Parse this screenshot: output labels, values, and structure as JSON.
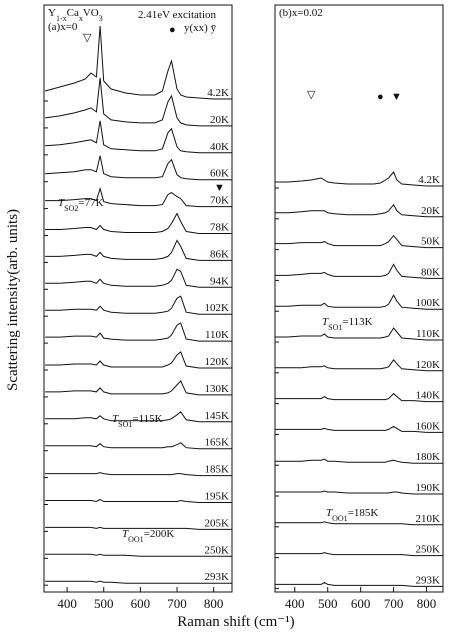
{
  "xlabel": "Raman shift (cm⁻¹)",
  "ylabel": "Scattering intensity(arb. units)",
  "chart_data": [
    {
      "type": "line",
      "x": [
        340,
        380,
        420,
        450,
        465,
        480,
        490,
        500,
        520,
        560,
        600,
        640,
        660,
        675,
        685,
        700,
        710,
        725,
        760,
        800,
        850
      ],
      "xlim": [
        337,
        850
      ],
      "xticks": [
        400,
        500,
        600,
        700,
        800
      ],
      "annotations": [
        {
          "parts": [
            "Y",
            "1-x",
            "Ca",
            "x",
            "VO",
            "3"
          ]
        },
        {
          "parts": [
            "(a)x=0"
          ]
        },
        {
          "parts": [
            "2.41eV excitation"
          ]
        },
        {
          "parts": [
            "y(xx) ȳ"
          ]
        },
        {
          "parts": [
            "▽"
          ]
        },
        {
          "parts": [
            "●"
          ]
        },
        {
          "parts": [
            "▼"
          ]
        },
        {
          "parts": [
            "T",
            "SO2",
            "=77K"
          ]
        },
        {
          "parts": [
            "T",
            "SO1",
            "=115K"
          ]
        },
        {
          "parts": [
            "T",
            "OO1",
            "=200K"
          ]
        }
      ],
      "series": [
        {
          "name": "4.2K",
          "color": "#111111",
          "values": [
            10,
            14,
            18,
            22,
            28,
            24,
            75,
            20,
            12,
            8,
            6,
            6,
            10,
            30,
            40,
            12,
            6,
            4,
            3,
            2,
            2
          ]
        },
        {
          "name": "20K",
          "color": "#111111",
          "values": [
            10,
            12,
            15,
            18,
            20,
            16,
            50,
            14,
            8,
            6,
            5,
            5,
            8,
            26,
            32,
            10,
            5,
            3,
            2,
            2,
            2
          ]
        },
        {
          "name": "40K",
          "color": "#111111",
          "values": [
            9,
            10,
            12,
            14,
            15,
            12,
            34,
            10,
            6,
            5,
            4,
            4,
            6,
            22,
            26,
            8,
            4,
            3,
            2,
            2,
            2
          ]
        },
        {
          "name": "60K",
          "color": "#111111",
          "values": [
            8,
            9,
            10,
            12,
            12,
            10,
            26,
            8,
            5,
            4,
            4,
            4,
            5,
            18,
            22,
            7,
            4,
            3,
            2,
            2,
            2
          ]
        },
        {
          "name": "70K",
          "color": "#111111",
          "values": [
            8,
            8,
            9,
            10,
            10,
            8,
            20,
            7,
            5,
            4,
            3,
            3,
            4,
            14,
            16,
            12,
            10,
            3,
            2,
            2,
            2
          ]
        },
        {
          "name": "78K",
          "color": "#111111",
          "values": [
            6,
            6,
            7,
            8,
            8,
            6,
            10,
            6,
            4,
            3,
            3,
            3,
            4,
            7,
            12,
            22,
            14,
            4,
            2,
            2,
            2
          ]
        },
        {
          "name": "86K",
          "color": "#111111",
          "values": [
            6,
            6,
            7,
            8,
            8,
            6,
            10,
            6,
            4,
            3,
            3,
            3,
            4,
            6,
            10,
            22,
            16,
            4,
            2,
            2,
            2
          ]
        },
        {
          "name": "94K",
          "color": "#111111",
          "values": [
            6,
            6,
            7,
            8,
            8,
            6,
            10,
            6,
            4,
            3,
            3,
            3,
            4,
            6,
            9,
            20,
            18,
            4,
            2,
            2,
            2
          ]
        },
        {
          "name": "102K",
          "color": "#111111",
          "values": [
            6,
            6,
            7,
            7,
            7,
            6,
            10,
            6,
            4,
            3,
            3,
            3,
            4,
            5,
            8,
            18,
            20,
            4,
            2,
            2,
            2
          ]
        },
        {
          "name": "110K",
          "color": "#111111",
          "values": [
            6,
            6,
            7,
            7,
            7,
            6,
            10,
            5,
            4,
            3,
            3,
            3,
            4,
            5,
            8,
            18,
            20,
            4,
            2,
            2,
            2
          ]
        },
        {
          "name": "120K",
          "color": "#111111",
          "values": [
            5,
            5,
            6,
            6,
            6,
            5,
            9,
            5,
            3,
            3,
            3,
            3,
            3,
            5,
            7,
            15,
            18,
            4,
            2,
            2,
            2
          ]
        },
        {
          "name": "130K",
          "color": "#111111",
          "values": [
            5,
            5,
            6,
            6,
            6,
            5,
            9,
            5,
            3,
            3,
            3,
            3,
            3,
            4,
            6,
            12,
            16,
            4,
            2,
            2,
            2
          ]
        },
        {
          "name": "145K",
          "color": "#111111",
          "values": [
            5,
            5,
            5,
            6,
            6,
            5,
            8,
            5,
            3,
            3,
            3,
            3,
            3,
            4,
            5,
            9,
            12,
            4,
            2,
            2,
            2
          ]
        },
        {
          "name": "165K",
          "color": "#111111",
          "values": [
            5,
            5,
            5,
            5,
            5,
            4,
            7,
            4,
            3,
            3,
            3,
            3,
            3,
            4,
            4,
            6,
            8,
            3,
            2,
            2,
            2
          ]
        },
        {
          "name": "185K",
          "color": "#111111",
          "values": [
            4,
            4,
            4,
            4,
            4,
            4,
            5,
            4,
            3,
            3,
            3,
            3,
            3,
            3,
            3,
            4,
            4,
            3,
            2,
            2,
            2
          ]
        },
        {
          "name": "195K",
          "color": "#111111",
          "values": [
            4,
            4,
            4,
            4,
            4,
            3,
            5,
            3,
            3,
            3,
            3,
            3,
            3,
            3,
            3,
            3,
            4,
            3,
            2,
            2,
            2
          ]
        },
        {
          "name": "205K",
          "color": "#111111",
          "values": [
            4,
            4,
            4,
            4,
            4,
            3,
            4,
            3,
            3,
            3,
            3,
            3,
            3,
            3,
            3,
            3,
            3,
            3,
            2,
            2,
            2
          ]
        },
        {
          "name": "250K",
          "color": "#111111",
          "values": [
            4,
            4,
            4,
            4,
            4,
            3,
            4,
            3,
            3,
            3,
            2,
            2,
            2,
            2,
            2,
            2,
            2,
            2,
            2,
            2,
            2
          ]
        },
        {
          "name": "293K",
          "color": "#111111",
          "values": [
            4,
            4,
            4,
            4,
            4,
            3,
            4,
            3,
            3,
            2,
            2,
            2,
            2,
            2,
            2,
            2,
            2,
            2,
            2,
            2,
            2
          ]
        }
      ]
    },
    {
      "type": "line",
      "x": [
        340,
        380,
        420,
        450,
        465,
        480,
        490,
        500,
        520,
        560,
        600,
        640,
        660,
        675,
        685,
        700,
        710,
        725,
        760,
        800,
        850
      ],
      "xlim": [
        340,
        850
      ],
      "xticks": [
        400,
        500,
        600,
        700,
        800
      ],
      "annotations": [
        {
          "parts": [
            "(b)x=0.02"
          ]
        },
        {
          "parts": [
            "▽"
          ]
        },
        {
          "parts": [
            "●"
          ]
        },
        {
          "parts": [
            "▼"
          ]
        },
        {
          "parts": [
            "T",
            "SO1",
            "=113K"
          ]
        },
        {
          "parts": [
            "T",
            "OO1",
            "=185K"
          ]
        }
      ],
      "series": [
        {
          "name": "4.2K",
          "color": "#111111",
          "values": [
            6,
            6,
            7,
            8,
            9,
            10,
            8,
            6,
            5,
            4,
            4,
            4,
            5,
            8,
            10,
            16,
            8,
            4,
            3,
            2,
            2
          ]
        },
        {
          "name": "20K",
          "color": "#111111",
          "values": [
            6,
            6,
            7,
            8,
            8,
            8,
            8,
            6,
            5,
            4,
            4,
            4,
            5,
            6,
            8,
            14,
            8,
            4,
            3,
            2,
            2
          ]
        },
        {
          "name": "50K",
          "color": "#111111",
          "values": [
            6,
            6,
            7,
            7,
            7,
            7,
            8,
            6,
            4,
            4,
            4,
            4,
            4,
            6,
            8,
            14,
            10,
            4,
            3,
            2,
            2
          ]
        },
        {
          "name": "80K",
          "color": "#111111",
          "values": [
            5,
            5,
            6,
            7,
            7,
            7,
            8,
            6,
            4,
            4,
            4,
            4,
            4,
            5,
            7,
            16,
            10,
            4,
            3,
            2,
            2
          ]
        },
        {
          "name": "100K",
          "color": "#111111",
          "values": [
            5,
            5,
            6,
            6,
            6,
            6,
            8,
            5,
            4,
            4,
            4,
            4,
            4,
            5,
            7,
            16,
            10,
            4,
            3,
            2,
            2
          ]
        },
        {
          "name": "110K",
          "color": "#111111",
          "values": [
            5,
            5,
            6,
            6,
            6,
            6,
            8,
            5,
            4,
            4,
            4,
            4,
            4,
            5,
            6,
            14,
            10,
            4,
            3,
            2,
            2
          ]
        },
        {
          "name": "120K",
          "color": "#111111",
          "values": [
            5,
            5,
            5,
            6,
            6,
            6,
            7,
            5,
            4,
            4,
            4,
            4,
            4,
            5,
            6,
            13,
            9,
            4,
            3,
            2,
            2
          ]
        },
        {
          "name": "140K",
          "color": "#111111",
          "values": [
            5,
            5,
            5,
            5,
            5,
            5,
            7,
            5,
            4,
            4,
            4,
            4,
            4,
            4,
            5,
            10,
            7,
            3,
            3,
            2,
            2
          ]
        },
        {
          "name": "160K",
          "color": "#111111",
          "values": [
            5,
            5,
            5,
            5,
            5,
            5,
            6,
            5,
            4,
            4,
            4,
            4,
            4,
            4,
            5,
            8,
            6,
            3,
            3,
            2,
            2
          ]
        },
        {
          "name": "180K",
          "color": "#111111",
          "values": [
            4,
            4,
            4,
            5,
            5,
            5,
            6,
            4,
            4,
            3,
            3,
            3,
            3,
            3,
            4,
            5,
            4,
            3,
            2,
            2,
            2
          ]
        },
        {
          "name": "190K",
          "color": "#111111",
          "values": [
            4,
            4,
            4,
            4,
            4,
            4,
            5,
            4,
            4,
            3,
            3,
            3,
            3,
            3,
            3,
            4,
            4,
            3,
            2,
            2,
            2
          ]
        },
        {
          "name": "210K",
          "color": "#111111",
          "values": [
            4,
            4,
            4,
            4,
            4,
            4,
            5,
            4,
            3,
            3,
            3,
            3,
            3,
            3,
            3,
            3,
            3,
            3,
            2,
            2,
            2
          ]
        },
        {
          "name": "250K",
          "color": "#111111",
          "values": [
            4,
            4,
            4,
            4,
            4,
            4,
            5,
            4,
            3,
            3,
            3,
            3,
            3,
            3,
            3,
            3,
            3,
            3,
            2,
            2,
            2
          ]
        },
        {
          "name": "293K",
          "color": "#111111",
          "values": [
            4,
            4,
            4,
            4,
            4,
            4,
            6,
            4,
            3,
            3,
            3,
            3,
            3,
            3,
            3,
            3,
            3,
            3,
            2,
            2,
            2
          ]
        }
      ]
    }
  ]
}
